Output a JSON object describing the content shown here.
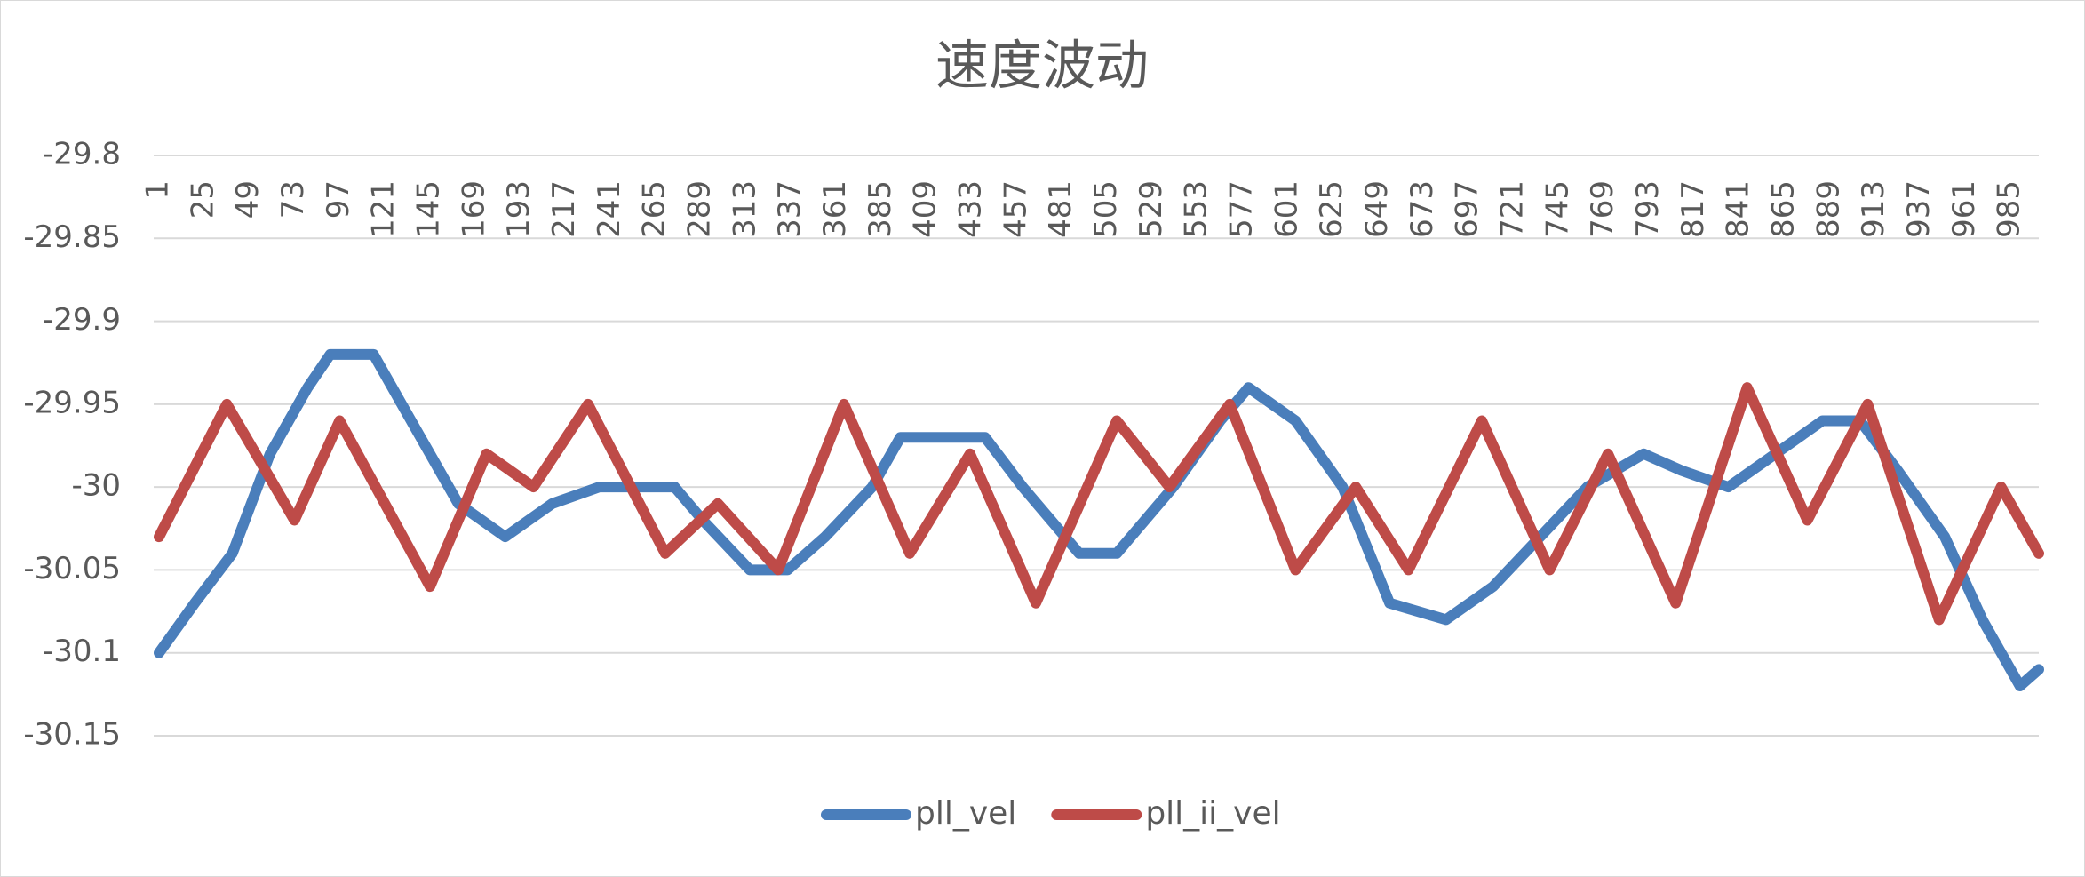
{
  "chart_data": {
    "type": "line",
    "title": "速度波动",
    "xlim": [
      1,
      1000
    ],
    "xticks": [
      1,
      25,
      49,
      73,
      97,
      121,
      145,
      169,
      193,
      217,
      241,
      265,
      289,
      313,
      337,
      361,
      385,
      409,
      433,
      457,
      481,
      505,
      529,
      553,
      577,
      601,
      625,
      649,
      673,
      697,
      721,
      745,
      769,
      793,
      817,
      841,
      865,
      889,
      913,
      937,
      961,
      985
    ],
    "ylim": [
      -30.15,
      -29.8
    ],
    "yticks": [
      -29.8,
      -29.85,
      -29.9,
      -29.95,
      -30,
      -30.05,
      -30.1,
      -30.15
    ],
    "grid": true,
    "legend": "bottom",
    "series": [
      {
        "name": "pll_vel",
        "color": "#4a7ebb",
        "x": [
          1,
          20,
          40,
          60,
          80,
          92,
          115,
          130,
          150,
          160,
          185,
          210,
          235,
          275,
          290,
          315,
          335,
          355,
          380,
          395,
          440,
          460,
          490,
          510,
          540,
          565,
          580,
          605,
          630,
          655,
          685,
          710,
          735,
          760,
          790,
          810,
          835,
          860,
          885,
          905,
          925,
          950,
          970,
          990,
          1000
        ],
        "values": [
          -30.1,
          -30.07,
          -30.04,
          -29.98,
          -29.94,
          -29.92,
          -29.92,
          -29.95,
          -29.99,
          -30.01,
          -30.03,
          -30.01,
          -30.0,
          -30.0,
          -30.02,
          -30.05,
          -30.05,
          -30.03,
          -30.0,
          -29.97,
          -29.97,
          -30.0,
          -30.04,
          -30.04,
          -30.0,
          -29.96,
          -29.94,
          -29.96,
          -30.0,
          -30.07,
          -30.08,
          -30.06,
          -30.03,
          -30.0,
          -29.98,
          -29.99,
          -30.0,
          -29.98,
          -29.96,
          -29.96,
          -29.99,
          -30.03,
          -30.08,
          -30.12,
          -30.11
        ]
      },
      {
        "name": "pll_ii_vel",
        "color": "#be4b48",
        "x": [
          1,
          37,
          73,
          97,
          145,
          175,
          200,
          229,
          270,
          298,
          330,
          365,
          400,
          432,
          467,
          510,
          538,
          570,
          605,
          637,
          665,
          704,
          740,
          771,
          807,
          845,
          877,
          909,
          947,
          980,
          1000
        ],
        "values": [
          -30.03,
          -29.95,
          -30.02,
          -29.96,
          -30.06,
          -29.98,
          -30.0,
          -29.95,
          -30.04,
          -30.01,
          -30.05,
          -29.95,
          -30.04,
          -29.98,
          -30.07,
          -29.96,
          -30.0,
          -29.95,
          -30.05,
          -30.0,
          -30.05,
          -29.96,
          -30.05,
          -29.98,
          -30.07,
          -29.94,
          -30.02,
          -29.95,
          -30.08,
          -30.0,
          -30.04
        ]
      }
    ]
  }
}
